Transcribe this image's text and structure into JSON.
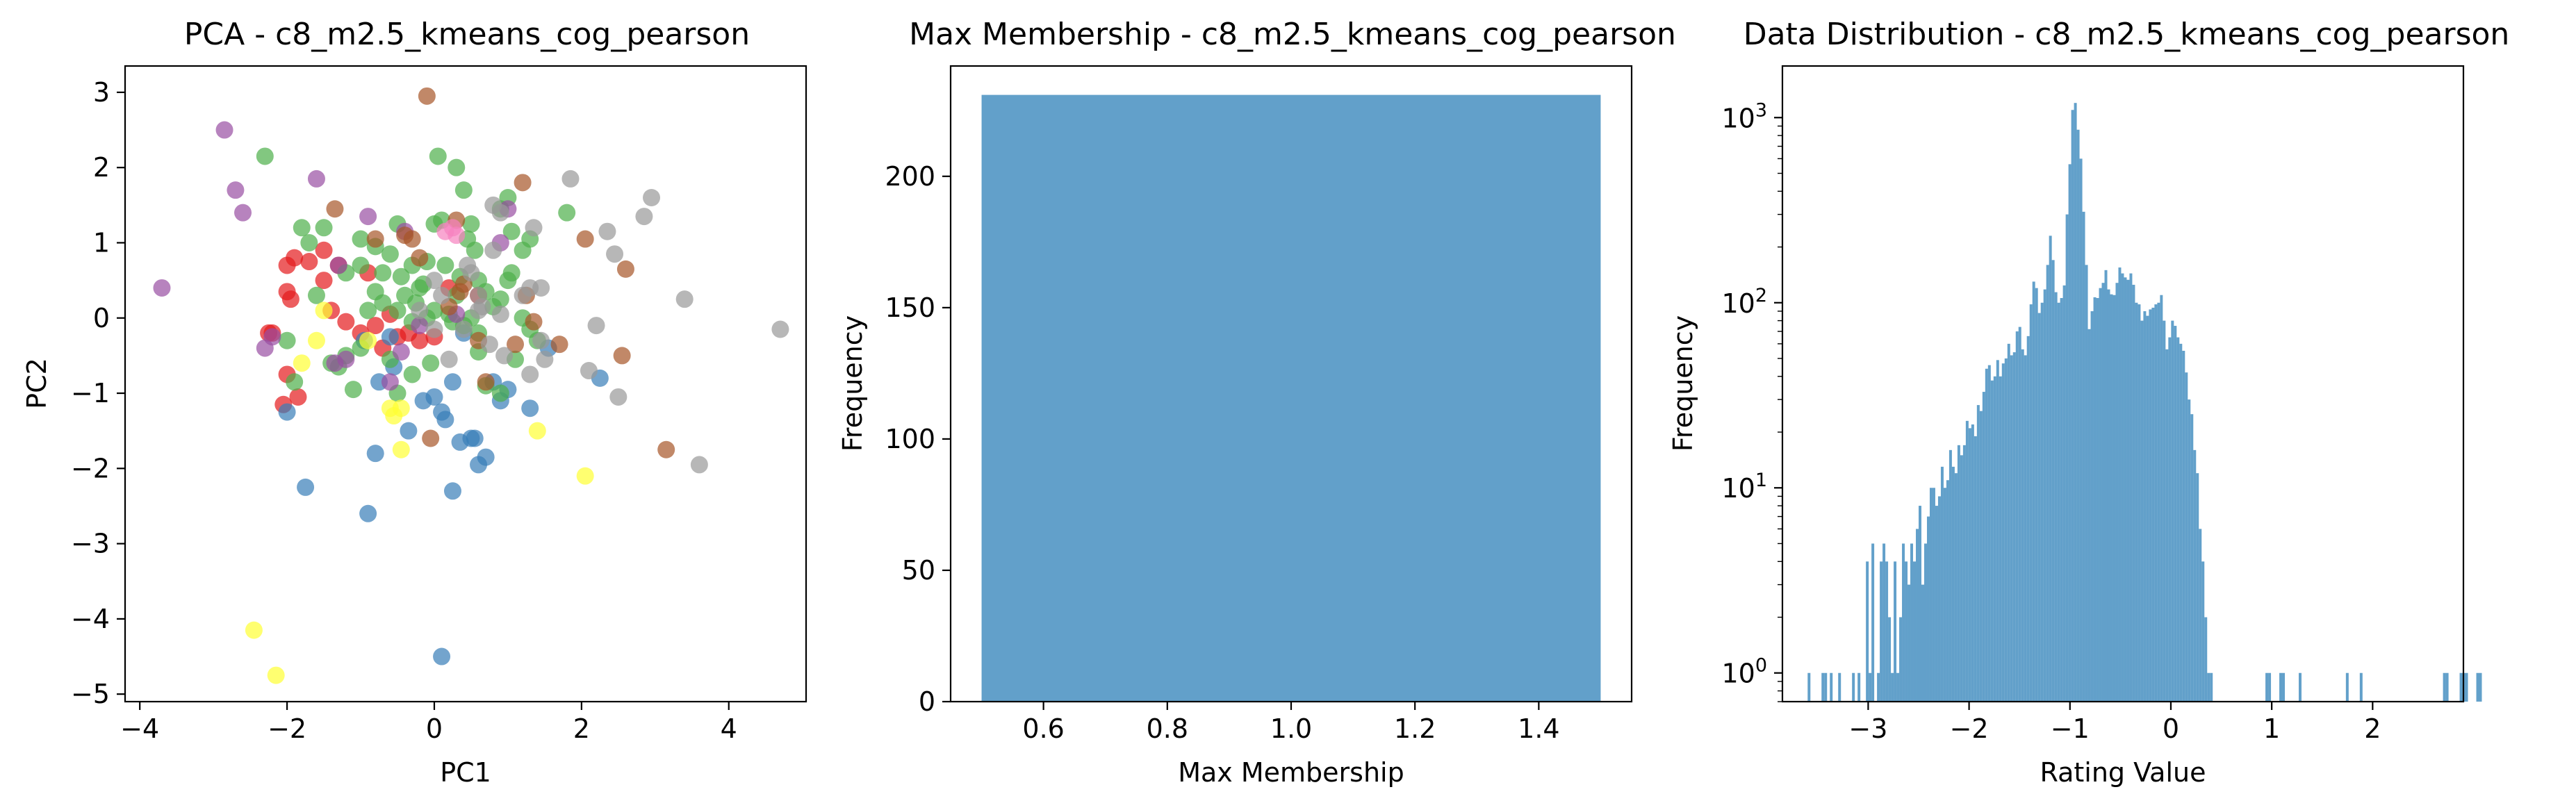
{
  "chart_data": [
    {
      "type": "scatter",
      "title": "PCA - c8_m2.5_kmeans_cog_pearson",
      "xlabel": "PC1",
      "ylabel": "PC2",
      "xlim": [
        -4.2,
        5.05
      ],
      "ylim": [
        -5.1,
        3.35
      ],
      "xticks": [
        -4,
        -2,
        0,
        2,
        4
      ],
      "yticks": [
        -5,
        -4,
        -3,
        -2,
        -1,
        0,
        1,
        2,
        3
      ],
      "grid": false,
      "legend": "none",
      "point_opacity": 0.7,
      "series": [
        {
          "color": "#e41a1c",
          "points": [
            [
              -2.0,
              0.7
            ],
            [
              -1.9,
              0.8
            ],
            [
              -1.7,
              0.75
            ],
            [
              -1.5,
              0.9
            ],
            [
              -1.3,
              0.7
            ],
            [
              -2.0,
              0.35
            ],
            [
              -1.95,
              0.25
            ],
            [
              -2.2,
              -0.2
            ],
            [
              -2.25,
              -0.2
            ],
            [
              -2.0,
              -0.75
            ],
            [
              -2.05,
              -1.15
            ],
            [
              -1.85,
              -1.05
            ],
            [
              -1.4,
              0.1
            ],
            [
              -1.2,
              -0.05
            ],
            [
              -1.0,
              -0.2
            ],
            [
              -0.8,
              -0.1
            ],
            [
              -0.6,
              0.05
            ],
            [
              -0.5,
              -0.25
            ],
            [
              -0.35,
              -0.2
            ],
            [
              -0.7,
              -0.4
            ],
            [
              -0.2,
              -0.3
            ],
            [
              0.0,
              -0.25
            ],
            [
              0.2,
              0.4
            ],
            [
              0.6,
              0.3
            ],
            [
              -1.5,
              0.5
            ],
            [
              -0.9,
              0.6
            ]
          ]
        },
        {
          "color": "#377eb8",
          "points": [
            [
              -2.0,
              -1.25
            ],
            [
              -1.75,
              -2.25
            ],
            [
              -0.9,
              -2.6
            ],
            [
              -0.8,
              -1.8
            ],
            [
              -0.75,
              -0.85
            ],
            [
              -0.55,
              -0.65
            ],
            [
              -0.35,
              -1.5
            ],
            [
              -0.15,
              -1.1
            ],
            [
              0.0,
              -1.05
            ],
            [
              0.1,
              -1.25
            ],
            [
              0.15,
              -1.35
            ],
            [
              0.25,
              -0.85
            ],
            [
              0.35,
              -1.65
            ],
            [
              0.25,
              -2.3
            ],
            [
              0.5,
              -1.6
            ],
            [
              0.6,
              -1.95
            ],
            [
              0.7,
              -1.85
            ],
            [
              0.55,
              -1.6
            ],
            [
              0.8,
              -0.85
            ],
            [
              1.0,
              -0.95
            ],
            [
              1.3,
              -1.2
            ],
            [
              1.55,
              -0.4
            ],
            [
              2.25,
              -0.8
            ],
            [
              0.1,
              -4.5
            ],
            [
              -0.6,
              -0.25
            ],
            [
              0.4,
              -0.2
            ],
            [
              0.9,
              -1.1
            ],
            [
              -0.95,
              -0.3
            ]
          ]
        },
        {
          "color": "#4daf4a",
          "points": [
            [
              -2.3,
              2.15
            ],
            [
              -1.8,
              1.2
            ],
            [
              -1.7,
              1.0
            ],
            [
              -1.5,
              1.2
            ],
            [
              -1.2,
              0.6
            ],
            [
              -1.0,
              0.7
            ],
            [
              -1.0,
              1.05
            ],
            [
              -0.8,
              0.95
            ],
            [
              -0.6,
              0.85
            ],
            [
              -0.5,
              1.25
            ],
            [
              -0.3,
              0.7
            ],
            [
              -0.2,
              0.4
            ],
            [
              -0.1,
              0.75
            ],
            [
              0.0,
              1.25
            ],
            [
              0.1,
              1.3
            ],
            [
              0.05,
              2.15
            ],
            [
              0.3,
              2.0
            ],
            [
              0.4,
              1.7
            ],
            [
              0.5,
              1.25
            ],
            [
              0.55,
              0.9
            ],
            [
              0.6,
              0.5
            ],
            [
              0.7,
              0.35
            ],
            [
              0.8,
              0.15
            ],
            [
              0.9,
              0.25
            ],
            [
              1.0,
              0.5
            ],
            [
              1.05,
              0.6
            ],
            [
              1.2,
              0.9
            ],
            [
              1.3,
              1.05
            ],
            [
              1.0,
              1.6
            ],
            [
              0.9,
              1.45
            ],
            [
              1.05,
              1.15
            ],
            [
              1.2,
              0.0
            ],
            [
              1.3,
              -0.15
            ],
            [
              1.4,
              -0.3
            ],
            [
              -0.1,
              0.0
            ],
            [
              0.0,
              0.1
            ],
            [
              0.2,
              0.05
            ],
            [
              -0.3,
              -0.05
            ],
            [
              -0.5,
              0.1
            ],
            [
              -0.7,
              0.2
            ],
            [
              -1.0,
              -0.4
            ],
            [
              -1.2,
              -0.5
            ],
            [
              -1.1,
              -0.95
            ],
            [
              -1.3,
              -0.65
            ],
            [
              -1.4,
              -0.6
            ],
            [
              -1.9,
              -0.85
            ],
            [
              -2.0,
              -0.3
            ],
            [
              0.6,
              -0.45
            ],
            [
              0.7,
              -0.9
            ],
            [
              0.9,
              -1.0
            ],
            [
              -0.3,
              -0.75
            ],
            [
              -0.5,
              -1.0
            ],
            [
              0.4,
              -0.1
            ],
            [
              0.6,
              -0.2
            ],
            [
              1.8,
              1.4
            ],
            [
              0.3,
              0.3
            ],
            [
              -0.8,
              0.35
            ],
            [
              -0.4,
              0.3
            ],
            [
              0.15,
              0.7
            ],
            [
              0.35,
              0.55
            ],
            [
              -0.15,
              0.45
            ],
            [
              -0.25,
              0.2
            ],
            [
              -0.45,
              0.55
            ],
            [
              0.5,
              0.0
            ],
            [
              -1.6,
              0.3
            ],
            [
              -0.9,
              0.1
            ],
            [
              1.1,
              -0.55
            ],
            [
              0.45,
              1.05
            ],
            [
              -0.6,
              -0.55
            ],
            [
              -0.05,
              -0.6
            ],
            [
              -0.7,
              0.6
            ],
            [
              0.25,
              -0.05
            ]
          ]
        },
        {
          "color": "#984ea3",
          "points": [
            [
              -3.7,
              0.4
            ],
            [
              -2.85,
              2.5
            ],
            [
              -2.7,
              1.7
            ],
            [
              -2.6,
              1.4
            ],
            [
              -2.3,
              -0.4
            ],
            [
              -2.2,
              -0.25
            ],
            [
              -1.6,
              1.85
            ],
            [
              -1.3,
              0.7
            ],
            [
              -1.2,
              -0.55
            ],
            [
              -1.35,
              -0.6
            ],
            [
              -0.9,
              1.35
            ],
            [
              -0.4,
              1.15
            ],
            [
              -0.2,
              -0.1
            ],
            [
              0.9,
              1.0
            ],
            [
              1.0,
              1.45
            ],
            [
              0.3,
              0.05
            ],
            [
              -0.6,
              -0.85
            ],
            [
              -0.45,
              -0.45
            ]
          ]
        },
        {
          "color": "#ff7f00",
          "points": []
        },
        {
          "color": "#ffff33",
          "points": [
            [
              -2.45,
              -4.15
            ],
            [
              -2.15,
              -4.75
            ],
            [
              -1.8,
              -0.6
            ],
            [
              -1.6,
              -0.3
            ],
            [
              -1.5,
              0.1
            ],
            [
              -0.9,
              -0.3
            ],
            [
              -0.6,
              -1.2
            ],
            [
              -0.55,
              -1.3
            ],
            [
              -0.45,
              -1.75
            ],
            [
              -0.45,
              -1.2
            ],
            [
              1.4,
              -1.5
            ],
            [
              2.05,
              -2.1
            ]
          ]
        },
        {
          "color": "#a65628",
          "points": [
            [
              -0.1,
              2.95
            ],
            [
              -1.35,
              1.45
            ],
            [
              -0.4,
              1.1
            ],
            [
              -0.3,
              1.05
            ],
            [
              0.3,
              1.3
            ],
            [
              0.35,
              0.35
            ],
            [
              0.4,
              0.45
            ],
            [
              0.6,
              -0.3
            ],
            [
              0.7,
              -0.85
            ],
            [
              1.2,
              1.8
            ],
            [
              1.25,
              0.3
            ],
            [
              1.1,
              -0.35
            ],
            [
              1.35,
              -0.05
            ],
            [
              1.7,
              -0.35
            ],
            [
              2.05,
              1.05
            ],
            [
              2.55,
              -0.5
            ],
            [
              2.6,
              0.65
            ],
            [
              3.15,
              -1.75
            ],
            [
              -0.05,
              -1.6
            ],
            [
              -0.8,
              1.05
            ],
            [
              0.2,
              0.15
            ],
            [
              -0.2,
              0.8
            ]
          ]
        },
        {
          "color": "#f781bf",
          "points": [
            [
              0.15,
              1.15
            ],
            [
              0.3,
              1.1
            ],
            [
              0.25,
              1.2
            ]
          ]
        },
        {
          "color": "#999999",
          "points": [
            [
              0.5,
              0.6
            ],
            [
              0.6,
              0.3
            ],
            [
              0.65,
              0.15
            ],
            [
              0.8,
              1.5
            ],
            [
              0.8,
              0.9
            ],
            [
              0.9,
              1.4
            ],
            [
              1.2,
              0.3
            ],
            [
              1.3,
              0.4
            ],
            [
              1.35,
              1.2
            ],
            [
              1.45,
              0.4
            ],
            [
              1.45,
              -0.3
            ],
            [
              1.5,
              -0.55
            ],
            [
              1.3,
              -0.75
            ],
            [
              1.85,
              1.85
            ],
            [
              2.1,
              -0.7
            ],
            [
              2.2,
              -0.1
            ],
            [
              2.35,
              1.15
            ],
            [
              2.45,
              0.85
            ],
            [
              2.5,
              -1.05
            ],
            [
              2.85,
              1.35
            ],
            [
              2.95,
              1.6
            ],
            [
              3.4,
              0.25
            ],
            [
              3.6,
              -1.95
            ],
            [
              4.7,
              -0.15
            ],
            [
              0.0,
              -0.15
            ],
            [
              0.2,
              -0.55
            ],
            [
              0.4,
              -0.15
            ],
            [
              0.75,
              -0.35
            ],
            [
              0.95,
              -0.5
            ],
            [
              0.0,
              0.5
            ],
            [
              0.1,
              0.3
            ],
            [
              -0.2,
              0.1
            ],
            [
              0.45,
              0.7
            ],
            [
              0.6,
              0.1
            ],
            [
              0.9,
              0.05
            ]
          ]
        }
      ]
    },
    {
      "type": "bar",
      "title": "Max Membership - c8_m2.5_kmeans_cog_pearson",
      "xlabel": "Max Membership",
      "ylabel": "Frequency",
      "xlim": [
        0.45,
        1.55
      ],
      "ylim": [
        0,
        242
      ],
      "xticks": [
        "0.6",
        "0.8",
        "1.0",
        "1.2",
        "1.4"
      ],
      "yticks": [
        "0",
        "50",
        "100",
        "150",
        "200"
      ],
      "bars": [
        {
          "x0": 0.5,
          "x1": 1.5,
          "value": 231
        }
      ],
      "color": "#1f77b4",
      "opacity": 0.7,
      "grid": false
    },
    {
      "type": "bar",
      "title": "Data Distribution - c8_m2.5_kmeans_cog_pearson",
      "xlabel": "Rating Value",
      "ylabel": "Frequency",
      "yscale": "log",
      "xlim": [
        -3.85,
        2.9
      ],
      "ylim": [
        0.7,
        1900
      ],
      "xticks": [
        "−3",
        "−2",
        "−1",
        "0",
        "1",
        "2"
      ],
      "yticks": [
        1,
        10,
        100,
        1000
      ],
      "bin_start": -3.6,
      "bin_width": 0.0275,
      "counts": [
        1,
        0,
        0,
        0,
        0,
        1,
        1,
        0,
        1,
        0,
        0,
        1,
        0,
        0,
        0,
        0,
        1,
        0,
        1,
        0,
        0,
        4,
        1,
        5,
        0,
        1,
        4,
        5,
        4,
        2,
        1,
        4,
        1,
        2,
        5,
        4,
        3,
        5,
        4,
        6,
        8,
        3,
        5,
        7,
        10,
        10,
        8,
        9,
        13,
        10,
        11,
        16,
        13,
        12,
        17,
        15,
        17,
        23,
        21,
        22,
        19,
        28,
        26,
        33,
        44,
        46,
        38,
        40,
        49,
        40,
        47,
        50,
        60,
        52,
        54,
        70,
        74,
        56,
        52,
        66,
        98,
        130,
        120,
        88,
        100,
        118,
        160,
        230,
        170,
        114,
        100,
        106,
        124,
        300,
        560,
        1100,
        1200,
        860,
        600,
        310,
        160,
        72,
        90,
        107,
        106,
        120,
        128,
        150,
        118,
        111,
        110,
        128,
        155,
        144,
        137,
        133,
        144,
        125,
        100,
        98,
        80,
        90,
        85,
        92,
        94,
        98,
        100,
        110,
        80,
        56,
        65,
        80,
        75,
        65,
        60,
        55,
        42,
        30,
        25,
        16,
        12,
        6,
        4,
        2,
        1,
        1,
        0,
        0,
        0,
        0,
        0,
        0,
        0,
        0,
        0,
        0,
        0,
        0,
        0,
        0,
        0,
        0,
        0,
        0,
        0,
        1,
        1,
        0,
        0,
        0,
        1,
        1,
        0,
        0,
        0,
        0,
        0,
        1,
        0,
        0,
        0,
        0,
        0,
        0,
        0,
        0,
        0,
        0,
        0,
        0,
        0,
        0,
        0,
        0,
        1,
        0,
        0,
        0,
        0,
        1,
        0,
        0,
        0,
        0,
        0,
        0,
        0,
        0,
        0,
        0,
        0,
        0,
        0,
        0,
        0,
        0,
        0,
        0,
        0,
        0,
        0,
        0,
        0,
        0,
        0,
        0,
        0,
        0,
        0,
        1,
        1,
        0,
        0,
        0,
        0,
        1,
        1,
        1,
        0,
        0,
        0,
        1,
        1
      ],
      "color": "#1f77b4",
      "opacity": 0.7,
      "grid": false
    }
  ]
}
